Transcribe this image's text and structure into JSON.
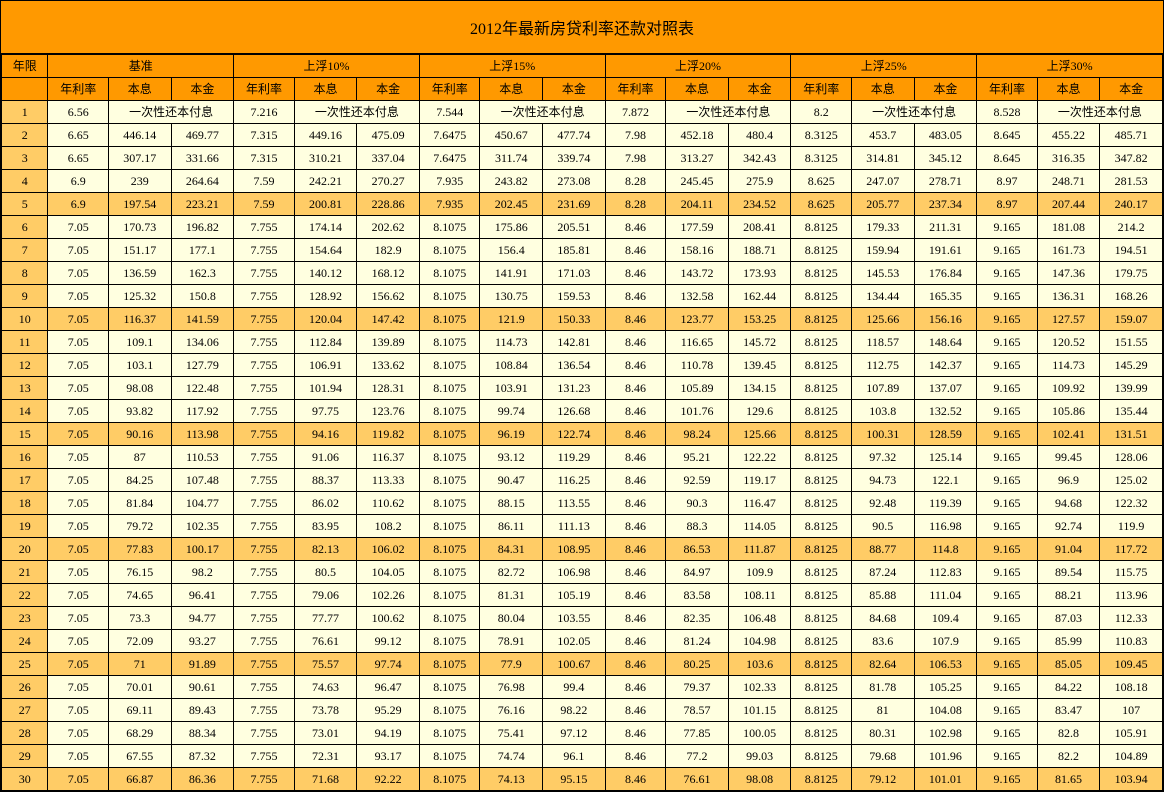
{
  "title": "2012年最新房贷利率还款对照表",
  "headers": {
    "year": "年限",
    "groups": [
      "基准",
      "上浮10%",
      "上浮15%",
      "上浮20%",
      "上浮25%",
      "上浮30%"
    ],
    "sub": [
      "年利率",
      "本息",
      "本金"
    ]
  },
  "special_text": "一次性还本付息",
  "colors": {
    "header_bg": "#ff9900",
    "row_highlight_bg": "#ffcc66",
    "normal_bg": "#ffffe0",
    "year_col_bg": "#ffcc66"
  },
  "highlight_rows": [
    5,
    10,
    15,
    20,
    25,
    30
  ],
  "rows": [
    {
      "y": 1,
      "g": [
        [
          6.56,
          null,
          null
        ],
        [
          7.216,
          null,
          null
        ],
        [
          7.544,
          null,
          null
        ],
        [
          7.872,
          null,
          null
        ],
        [
          8.2,
          null,
          null
        ],
        [
          8.528,
          null,
          null
        ]
      ]
    },
    {
      "y": 2,
      "g": [
        [
          6.65,
          446.14,
          469.77
        ],
        [
          7.315,
          449.16,
          475.09
        ],
        [
          7.6475,
          450.67,
          477.74
        ],
        [
          7.98,
          452.18,
          480.4
        ],
        [
          8.3125,
          453.7,
          483.05
        ],
        [
          8.645,
          455.22,
          485.71
        ]
      ]
    },
    {
      "y": 3,
      "g": [
        [
          6.65,
          307.17,
          331.66
        ],
        [
          7.315,
          310.21,
          337.04
        ],
        [
          7.6475,
          311.74,
          339.74
        ],
        [
          7.98,
          313.27,
          342.43
        ],
        [
          8.3125,
          314.81,
          345.12
        ],
        [
          8.645,
          316.35,
          347.82
        ]
      ]
    },
    {
      "y": 4,
      "g": [
        [
          6.9,
          239,
          264.64
        ],
        [
          7.59,
          242.21,
          270.27
        ],
        [
          7.935,
          243.82,
          273.08
        ],
        [
          8.28,
          245.45,
          275.9
        ],
        [
          8.625,
          247.07,
          278.71
        ],
        [
          8.97,
          248.71,
          281.53
        ]
      ]
    },
    {
      "y": 5,
      "g": [
        [
          6.9,
          197.54,
          223.21
        ],
        [
          7.59,
          200.81,
          228.86
        ],
        [
          7.935,
          202.45,
          231.69
        ],
        [
          8.28,
          204.11,
          234.52
        ],
        [
          8.625,
          205.77,
          237.34
        ],
        [
          8.97,
          207.44,
          240.17
        ]
      ]
    },
    {
      "y": 6,
      "g": [
        [
          7.05,
          170.73,
          196.82
        ],
        [
          7.755,
          174.14,
          202.62
        ],
        [
          8.1075,
          175.86,
          205.51
        ],
        [
          8.46,
          177.59,
          208.41
        ],
        [
          8.8125,
          179.33,
          211.31
        ],
        [
          9.165,
          181.08,
          214.2
        ]
      ]
    },
    {
      "y": 7,
      "g": [
        [
          7.05,
          151.17,
          177.1
        ],
        [
          7.755,
          154.64,
          182.9
        ],
        [
          8.1075,
          156.4,
          185.81
        ],
        [
          8.46,
          158.16,
          188.71
        ],
        [
          8.8125,
          159.94,
          191.61
        ],
        [
          9.165,
          161.73,
          194.51
        ]
      ]
    },
    {
      "y": 8,
      "g": [
        [
          7.05,
          136.59,
          162.3
        ],
        [
          7.755,
          140.12,
          168.12
        ],
        [
          8.1075,
          141.91,
          171.03
        ],
        [
          8.46,
          143.72,
          173.93
        ],
        [
          8.8125,
          145.53,
          176.84
        ],
        [
          9.165,
          147.36,
          179.75
        ]
      ]
    },
    {
      "y": 9,
      "g": [
        [
          7.05,
          125.32,
          150.8
        ],
        [
          7.755,
          128.92,
          156.62
        ],
        [
          8.1075,
          130.75,
          159.53
        ],
        [
          8.46,
          132.58,
          162.44
        ],
        [
          8.8125,
          134.44,
          165.35
        ],
        [
          9.165,
          136.31,
          168.26
        ]
      ]
    },
    {
      "y": 10,
      "g": [
        [
          7.05,
          116.37,
          141.59
        ],
        [
          7.755,
          120.04,
          147.42
        ],
        [
          8.1075,
          121.9,
          150.33
        ],
        [
          8.46,
          123.77,
          153.25
        ],
        [
          8.8125,
          125.66,
          156.16
        ],
        [
          9.165,
          127.57,
          159.07
        ]
      ]
    },
    {
      "y": 11,
      "g": [
        [
          7.05,
          109.1,
          134.06
        ],
        [
          7.755,
          112.84,
          139.89
        ],
        [
          8.1075,
          114.73,
          142.81
        ],
        [
          8.46,
          116.65,
          145.72
        ],
        [
          8.8125,
          118.57,
          148.64
        ],
        [
          9.165,
          120.52,
          151.55
        ]
      ]
    },
    {
      "y": 12,
      "g": [
        [
          7.05,
          103.1,
          127.79
        ],
        [
          7.755,
          106.91,
          133.62
        ],
        [
          8.1075,
          108.84,
          136.54
        ],
        [
          8.46,
          110.78,
          139.45
        ],
        [
          8.8125,
          112.75,
          142.37
        ],
        [
          9.165,
          114.73,
          145.29
        ]
      ]
    },
    {
      "y": 13,
      "g": [
        [
          7.05,
          98.08,
          122.48
        ],
        [
          7.755,
          101.94,
          128.31
        ],
        [
          8.1075,
          103.91,
          131.23
        ],
        [
          8.46,
          105.89,
          134.15
        ],
        [
          8.8125,
          107.89,
          137.07
        ],
        [
          9.165,
          109.92,
          139.99
        ]
      ]
    },
    {
      "y": 14,
      "g": [
        [
          7.05,
          93.82,
          117.92
        ],
        [
          7.755,
          97.75,
          123.76
        ],
        [
          8.1075,
          99.74,
          126.68
        ],
        [
          8.46,
          101.76,
          129.6
        ],
        [
          8.8125,
          103.8,
          132.52
        ],
        [
          9.165,
          105.86,
          135.44
        ]
      ]
    },
    {
      "y": 15,
      "g": [
        [
          7.05,
          90.16,
          113.98
        ],
        [
          7.755,
          94.16,
          119.82
        ],
        [
          8.1075,
          96.19,
          122.74
        ],
        [
          8.46,
          98.24,
          125.66
        ],
        [
          8.8125,
          100.31,
          128.59
        ],
        [
          9.165,
          102.41,
          131.51
        ]
      ]
    },
    {
      "y": 16,
      "g": [
        [
          7.05,
          87,
          110.53
        ],
        [
          7.755,
          91.06,
          116.37
        ],
        [
          8.1075,
          93.12,
          119.29
        ],
        [
          8.46,
          95.21,
          122.22
        ],
        [
          8.8125,
          97.32,
          125.14
        ],
        [
          9.165,
          99.45,
          128.06
        ]
      ]
    },
    {
      "y": 17,
      "g": [
        [
          7.05,
          84.25,
          107.48
        ],
        [
          7.755,
          88.37,
          113.33
        ],
        [
          8.1075,
          90.47,
          116.25
        ],
        [
          8.46,
          92.59,
          119.17
        ],
        [
          8.8125,
          94.73,
          122.1
        ],
        [
          9.165,
          96.9,
          125.02
        ]
      ]
    },
    {
      "y": 18,
      "g": [
        [
          7.05,
          81.84,
          104.77
        ],
        [
          7.755,
          86.02,
          110.62
        ],
        [
          8.1075,
          88.15,
          113.55
        ],
        [
          8.46,
          90.3,
          116.47
        ],
        [
          8.8125,
          92.48,
          119.39
        ],
        [
          9.165,
          94.68,
          122.32
        ]
      ]
    },
    {
      "y": 19,
      "g": [
        [
          7.05,
          79.72,
          102.35
        ],
        [
          7.755,
          83.95,
          108.2
        ],
        [
          8.1075,
          86.11,
          111.13
        ],
        [
          8.46,
          88.3,
          114.05
        ],
        [
          8.8125,
          90.5,
          116.98
        ],
        [
          9.165,
          92.74,
          119.9
        ]
      ]
    },
    {
      "y": 20,
      "g": [
        [
          7.05,
          77.83,
          100.17
        ],
        [
          7.755,
          82.13,
          106.02
        ],
        [
          8.1075,
          84.31,
          108.95
        ],
        [
          8.46,
          86.53,
          111.87
        ],
        [
          8.8125,
          88.77,
          114.8
        ],
        [
          9.165,
          91.04,
          117.72
        ]
      ]
    },
    {
      "y": 21,
      "g": [
        [
          7.05,
          76.15,
          98.2
        ],
        [
          7.755,
          80.5,
          104.05
        ],
        [
          8.1075,
          82.72,
          106.98
        ],
        [
          8.46,
          84.97,
          109.9
        ],
        [
          8.8125,
          87.24,
          112.83
        ],
        [
          9.165,
          89.54,
          115.75
        ]
      ]
    },
    {
      "y": 22,
      "g": [
        [
          7.05,
          74.65,
          96.41
        ],
        [
          7.755,
          79.06,
          102.26
        ],
        [
          8.1075,
          81.31,
          105.19
        ],
        [
          8.46,
          83.58,
          108.11
        ],
        [
          8.8125,
          85.88,
          111.04
        ],
        [
          9.165,
          88.21,
          113.96
        ]
      ]
    },
    {
      "y": 23,
      "g": [
        [
          7.05,
          73.3,
          94.77
        ],
        [
          7.755,
          77.77,
          100.62
        ],
        [
          8.1075,
          80.04,
          103.55
        ],
        [
          8.46,
          82.35,
          106.48
        ],
        [
          8.8125,
          84.68,
          109.4
        ],
        [
          9.165,
          87.03,
          112.33
        ]
      ]
    },
    {
      "y": 24,
      "g": [
        [
          7.05,
          72.09,
          93.27
        ],
        [
          7.755,
          76.61,
          99.12
        ],
        [
          8.1075,
          78.91,
          102.05
        ],
        [
          8.46,
          81.24,
          104.98
        ],
        [
          8.8125,
          83.6,
          107.9
        ],
        [
          9.165,
          85.99,
          110.83
        ]
      ]
    },
    {
      "y": 25,
      "g": [
        [
          7.05,
          71,
          91.89
        ],
        [
          7.755,
          75.57,
          97.74
        ],
        [
          8.1075,
          77.9,
          100.67
        ],
        [
          8.46,
          80.25,
          103.6
        ],
        [
          8.8125,
          82.64,
          106.53
        ],
        [
          9.165,
          85.05,
          109.45
        ]
      ]
    },
    {
      "y": 26,
      "g": [
        [
          7.05,
          70.01,
          90.61
        ],
        [
          7.755,
          74.63,
          96.47
        ],
        [
          8.1075,
          76.98,
          99.4
        ],
        [
          8.46,
          79.37,
          102.33
        ],
        [
          8.8125,
          81.78,
          105.25
        ],
        [
          9.165,
          84.22,
          108.18
        ]
      ]
    },
    {
      "y": 27,
      "g": [
        [
          7.05,
          69.11,
          89.43
        ],
        [
          7.755,
          73.78,
          95.29
        ],
        [
          8.1075,
          76.16,
          98.22
        ],
        [
          8.46,
          78.57,
          101.15
        ],
        [
          8.8125,
          81,
          104.08
        ],
        [
          9.165,
          83.47,
          107
        ]
      ]
    },
    {
      "y": 28,
      "g": [
        [
          7.05,
          68.29,
          88.34
        ],
        [
          7.755,
          73.01,
          94.19
        ],
        [
          8.1075,
          75.41,
          97.12
        ],
        [
          8.46,
          77.85,
          100.05
        ],
        [
          8.8125,
          80.31,
          102.98
        ],
        [
          9.165,
          82.8,
          105.91
        ]
      ]
    },
    {
      "y": 29,
      "g": [
        [
          7.05,
          67.55,
          87.32
        ],
        [
          7.755,
          72.31,
          93.17
        ],
        [
          8.1075,
          74.74,
          96.1
        ],
        [
          8.46,
          77.2,
          99.03
        ],
        [
          8.8125,
          79.68,
          101.96
        ],
        [
          9.165,
          82.2,
          104.89
        ]
      ]
    },
    {
      "y": 30,
      "g": [
        [
          7.05,
          66.87,
          86.36
        ],
        [
          7.755,
          71.68,
          92.22
        ],
        [
          8.1075,
          74.13,
          95.15
        ],
        [
          8.46,
          76.61,
          98.08
        ],
        [
          8.8125,
          79.12,
          101.01
        ],
        [
          9.165,
          81.65,
          103.94
        ]
      ]
    }
  ]
}
